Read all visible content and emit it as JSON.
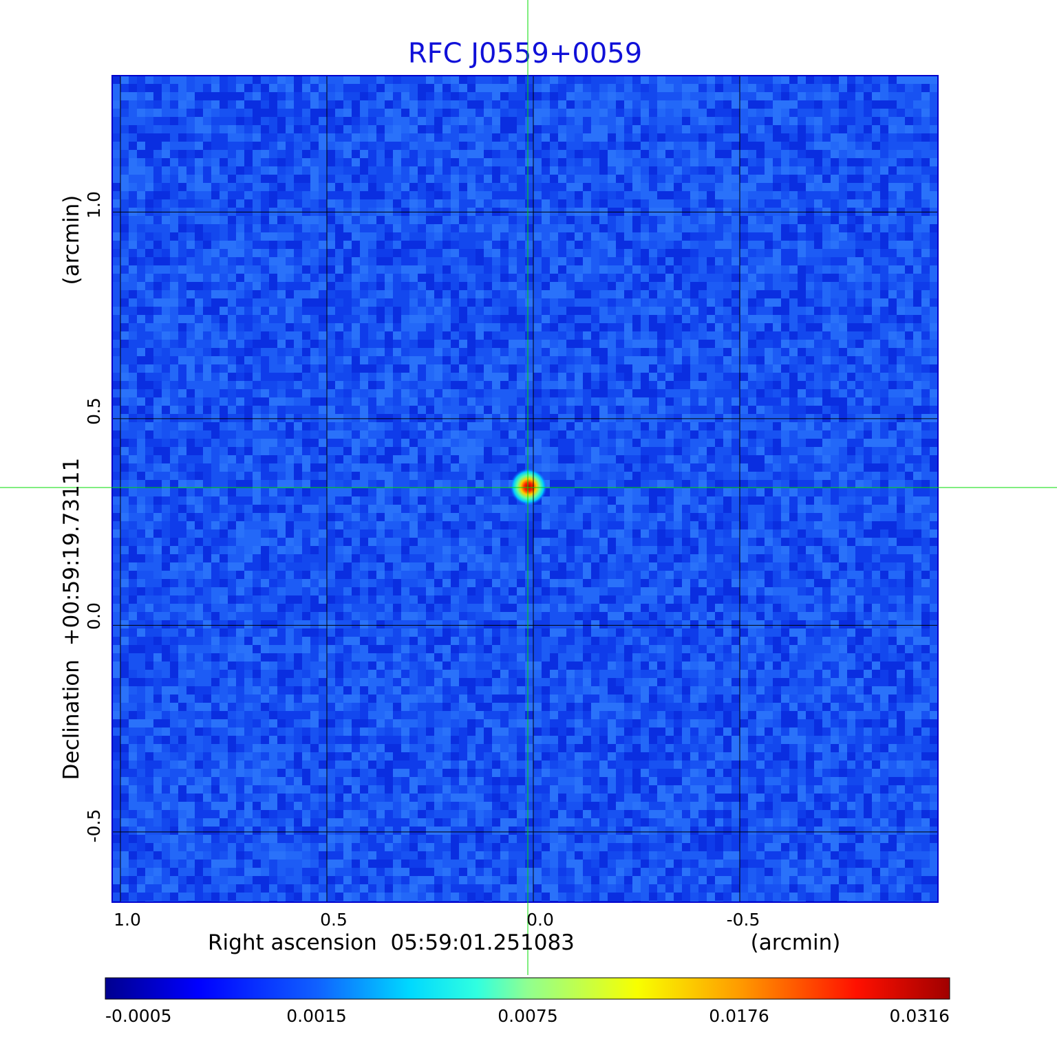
{
  "chart_data": {
    "type": "heatmap",
    "title": "RFC J0559+0059",
    "xlabel": "Right ascension  05:59:01.251083",
    "xunit": "(arcmin)",
    "ylabel": "Declination  +00:59:19.73111",
    "yunit": "(arcmin)",
    "x_ticks": [
      "1.0",
      "0.5",
      "0.0",
      "-0.5"
    ],
    "y_ticks": [
      "1.0",
      "0.5",
      "0.0",
      "-0.5"
    ],
    "xlim": [
      1.02,
      -0.98
    ],
    "ylim": [
      -0.67,
      1.33
    ],
    "grid": true,
    "crosshair": {
      "ra_offset": 0.0,
      "dec_offset": 0.33,
      "color": "#00dd00"
    },
    "source_peak": {
      "ra_offset": 0.0,
      "dec_offset": 0.33,
      "value": 0.0316
    },
    "colormap": "jet",
    "colorbar_ticks": [
      "-0.0005",
      "0.0015",
      "0.0075",
      "0.0176",
      "0.0316"
    ],
    "colorbar_range": [
      -0.0005,
      0.0316
    ]
  }
}
